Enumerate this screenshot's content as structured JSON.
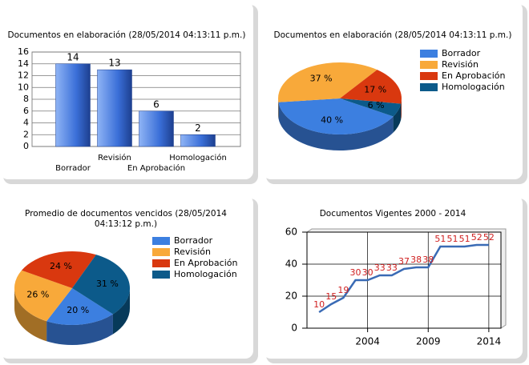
{
  "chart_data": [
    {
      "type": "bar",
      "title": "Documentos en elaboración (28/05/2014 04:13:11 p.m.)",
      "categories": [
        "Borrador",
        "Revisión",
        "En Aprobación",
        "Homologación"
      ],
      "values": [
        14,
        13,
        6,
        2
      ],
      "color": "#3a6fd8",
      "ylim": [
        0,
        16
      ],
      "yticks": [
        0,
        2,
        4,
        6,
        8,
        10,
        12,
        14,
        16
      ],
      "grid": true
    },
    {
      "type": "pie",
      "title": "Documentos en elaboración (28/05/2014 04:13:11 p.m.)",
      "categories": [
        "Borrador",
        "Revisión",
        "En Aprobación",
        "Homologación"
      ],
      "values": [
        40,
        37,
        17,
        6
      ],
      "value_labels": [
        "40 %",
        "37 %",
        "17 %",
        "6 %"
      ],
      "colors": [
        "#3c7fe0",
        "#f8a93a",
        "#d9380f",
        "#0c5a8a"
      ],
      "legend": "right"
    },
    {
      "type": "pie",
      "title": "Promedio de documentos vencidos (28/05/2014 04:13:12 p.m.)",
      "categories": [
        "Borrador",
        "Revisión",
        "En Aprobación",
        "Homologación"
      ],
      "values": [
        20,
        26,
        24,
        31
      ],
      "value_labels": [
        "20 %",
        "26 %",
        "24 %",
        "31 %"
      ],
      "colors": [
        "#3c7fe0",
        "#f8a93a",
        "#d9380f",
        "#0c5a8a"
      ],
      "legend": "right"
    },
    {
      "type": "line",
      "title": "Documentos Vigentes 2000 - 2014",
      "x": [
        2000,
        2001,
        2002,
        2003,
        2004,
        2005,
        2006,
        2007,
        2008,
        2009,
        2010,
        2011,
        2012,
        2013,
        2014
      ],
      "values": [
        10,
        15,
        19,
        30,
        30,
        33,
        33,
        37,
        38,
        38,
        51,
        51,
        51,
        52,
        52
      ],
      "color": "#3a6bb5",
      "label_color": "#d02020",
      "xlim": [
        1999,
        2015
      ],
      "xticks": [
        2004,
        2009,
        2014
      ],
      "ylim": [
        0,
        60
      ],
      "yticks": [
        0,
        20,
        40,
        60
      ],
      "grid": true
    }
  ]
}
